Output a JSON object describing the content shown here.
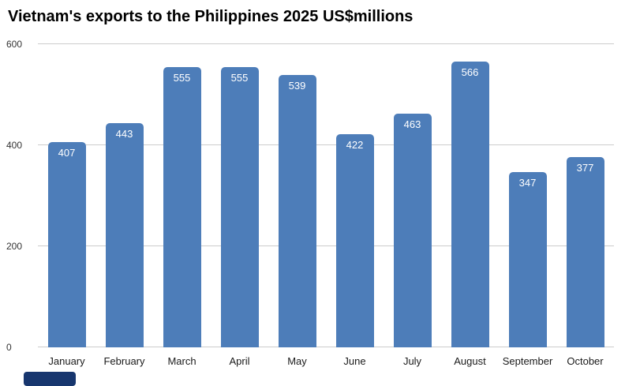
{
  "chart_data": {
    "type": "bar",
    "title": "Vietnam's exports to the Philippines 2025 US$millions",
    "categories": [
      "January",
      "February",
      "March",
      "April",
      "May",
      "June",
      "July",
      "August",
      "September",
      "October"
    ],
    "values": [
      407,
      443,
      555,
      555,
      539,
      422,
      463,
      566,
      347,
      377
    ],
    "xlabel": "",
    "ylabel": "",
    "ylim": [
      0,
      600
    ],
    "yticks": [
      0,
      200,
      400,
      600
    ],
    "grid": "horizontal",
    "legend": "none",
    "bar_color": "#4d7db9",
    "value_label_color": "#ffffff"
  }
}
